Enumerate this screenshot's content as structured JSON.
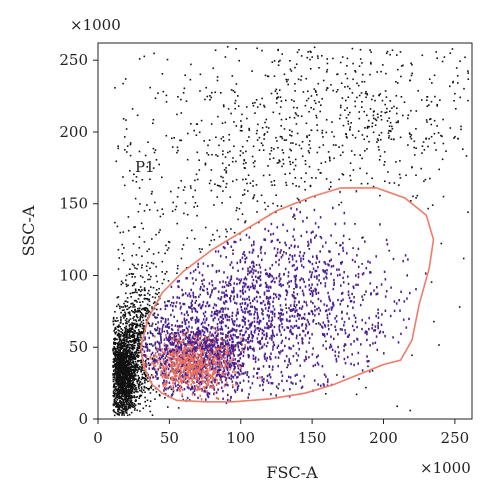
{
  "chart_data": {
    "type": "scatter",
    "xlabel": "FSC-A",
    "ylabel": "SSC-A",
    "x_multiplier": "×1000",
    "y_multiplier": "×1000",
    "xlim": [
      0,
      262
    ],
    "ylim": [
      0,
      262
    ],
    "x_ticks": [
      0,
      50,
      100,
      150,
      200,
      250
    ],
    "y_ticks": [
      0,
      50,
      100,
      150,
      200,
      250
    ],
    "grid": false,
    "series": [
      {
        "name": "P1",
        "kind": "gate",
        "color": "#f07c6a",
        "polygon": [
          [
            30,
            50
          ],
          [
            35,
            70
          ],
          [
            45,
            88
          ],
          [
            60,
            103
          ],
          [
            80,
            118
          ],
          [
            100,
            130
          ],
          [
            125,
            145
          ],
          [
            150,
            155
          ],
          [
            170,
            161
          ],
          [
            195,
            161
          ],
          [
            215,
            154
          ],
          [
            230,
            142
          ],
          [
            235,
            125
          ],
          [
            232,
            105
          ],
          [
            225,
            80
          ],
          [
            220,
            55
          ],
          [
            212,
            41
          ],
          [
            200,
            38
          ],
          [
            185,
            32
          ],
          [
            165,
            24
          ],
          [
            145,
            18
          ],
          [
            120,
            14
          ],
          [
            95,
            12
          ],
          [
            75,
            12
          ],
          [
            55,
            13
          ],
          [
            45,
            18
          ],
          [
            38,
            24
          ],
          [
            32,
            36
          ],
          [
            30,
            50
          ]
        ]
      }
    ],
    "population_colors": {
      "ungated": "#111111",
      "gated": "#4b1f8f",
      "dense_core": "#e8705e"
    },
    "populations": [
      {
        "group": "ungated",
        "center": [
          17,
          32
        ],
        "spread": [
          5,
          16
        ],
        "n": 1700
      },
      {
        "group": "ungated",
        "center": [
          30,
          55
        ],
        "spread": [
          10,
          25
        ],
        "n": 900
      },
      {
        "group": "ungated",
        "center": [
          110,
          150
        ],
        "spread": [
          70,
          60
        ],
        "n": 900
      },
      {
        "group": "ungated",
        "center": [
          180,
          220
        ],
        "spread": [
          50,
          30
        ],
        "n": 500
      },
      {
        "group": "gated",
        "center": [
          70,
          45
        ],
        "spread": [
          22,
          14
        ],
        "n": 1300
      },
      {
        "group": "gated",
        "center": [
          120,
          80
        ],
        "spread": [
          45,
          30
        ],
        "n": 1500
      },
      {
        "group": "dense_core",
        "center": [
          65,
          38
        ],
        "spread": [
          14,
          9
        ],
        "n": 600
      }
    ]
  }
}
